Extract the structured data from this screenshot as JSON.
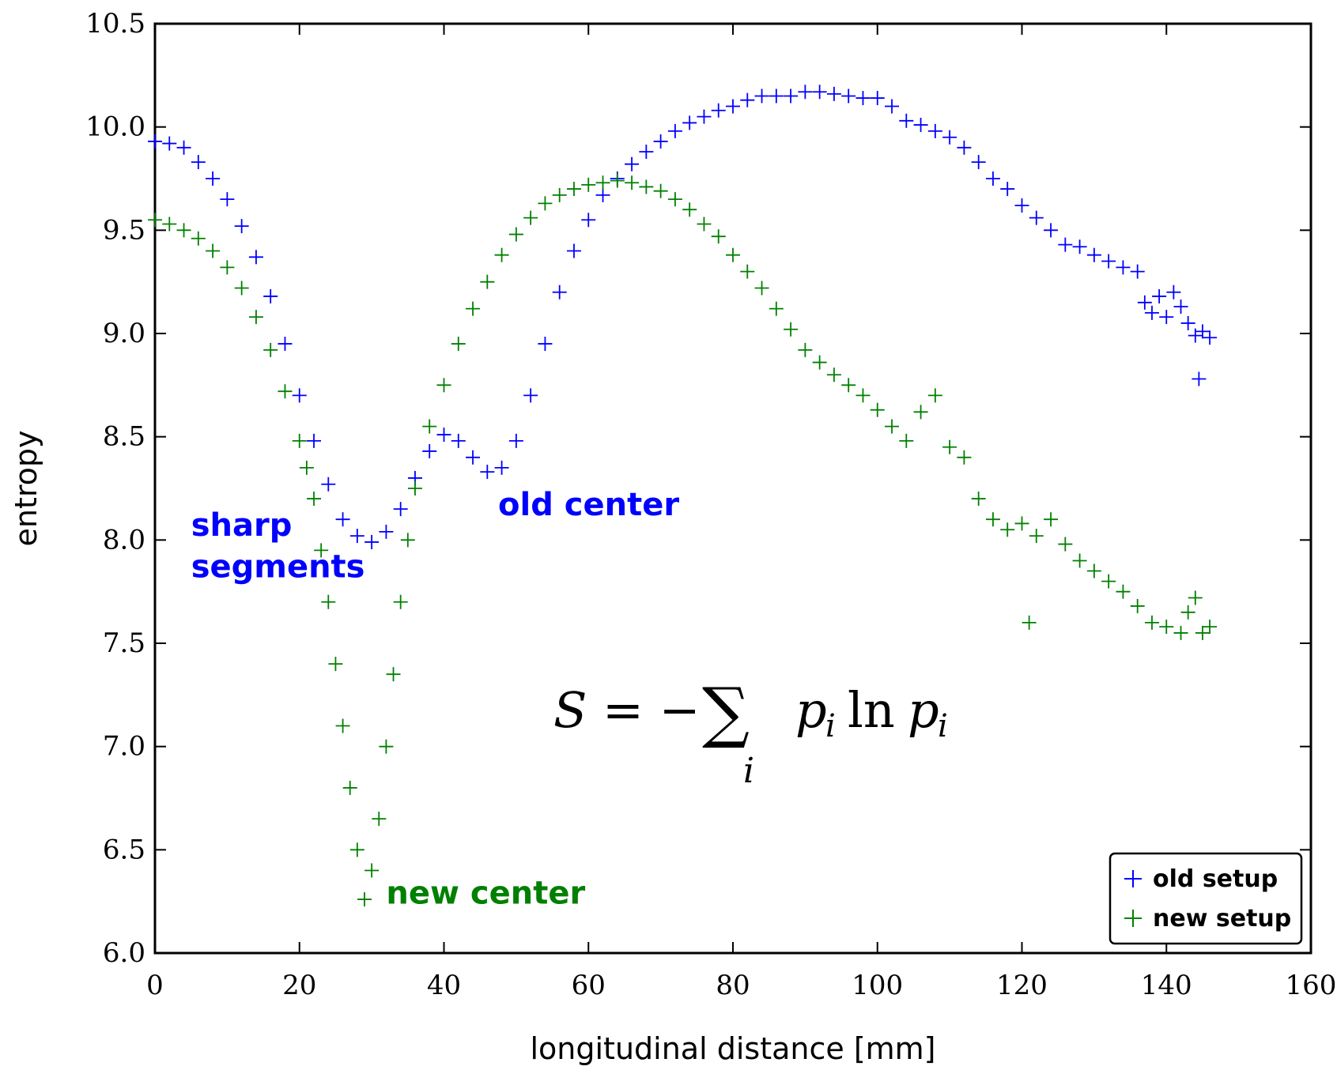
{
  "chart_data": {
    "type": "scatter",
    "xlabel": "longitudinal distance [mm]",
    "ylabel": "entropy",
    "xlim": [
      0,
      160
    ],
    "ylim": [
      6.0,
      10.5
    ],
    "x_ticks": [
      "0",
      "20",
      "40",
      "60",
      "80",
      "100",
      "120",
      "140",
      "160"
    ],
    "y_ticks": [
      "6.0",
      "6.5",
      "7.0",
      "7.5",
      "8.0",
      "8.5",
      "9.0",
      "9.5",
      "10.0",
      "10.5"
    ],
    "grid": false,
    "marker": "+",
    "legend_position": "lower right",
    "legend": [
      "old setup",
      "new setup"
    ],
    "colors": {
      "old setup": "#0000ff",
      "new setup": "#008000"
    },
    "series": [
      {
        "name": "old setup",
        "color": "#0000ff",
        "points": [
          [
            0,
            9.93
          ],
          [
            2,
            9.92
          ],
          [
            4,
            9.9
          ],
          [
            6,
            9.83
          ],
          [
            8,
            9.75
          ],
          [
            10,
            9.65
          ],
          [
            12,
            9.52
          ],
          [
            14,
            9.37
          ],
          [
            16,
            9.18
          ],
          [
            18,
            8.95
          ],
          [
            20,
            8.7
          ],
          [
            22,
            8.48
          ],
          [
            24,
            8.27
          ],
          [
            26,
            8.1
          ],
          [
            28,
            8.02
          ],
          [
            30,
            7.99
          ],
          [
            32,
            8.04
          ],
          [
            34,
            8.15
          ],
          [
            36,
            8.3
          ],
          [
            38,
            8.43
          ],
          [
            40,
            8.51
          ],
          [
            42,
            8.48
          ],
          [
            44,
            8.4
          ],
          [
            46,
            8.33
          ],
          [
            48,
            8.35
          ],
          [
            50,
            8.48
          ],
          [
            52,
            8.7
          ],
          [
            54,
            8.95
          ],
          [
            56,
            9.2
          ],
          [
            58,
            9.4
          ],
          [
            60,
            9.55
          ],
          [
            62,
            9.67
          ],
          [
            64,
            9.75
          ],
          [
            66,
            9.82
          ],
          [
            68,
            9.88
          ],
          [
            70,
            9.93
          ],
          [
            72,
            9.98
          ],
          [
            74,
            10.02
          ],
          [
            76,
            10.05
          ],
          [
            78,
            10.08
          ],
          [
            80,
            10.1
          ],
          [
            82,
            10.13
          ],
          [
            84,
            10.15
          ],
          [
            86,
            10.15
          ],
          [
            88,
            10.15
          ],
          [
            90,
            10.17
          ],
          [
            92,
            10.17
          ],
          [
            94,
            10.16
          ],
          [
            96,
            10.15
          ],
          [
            98,
            10.14
          ],
          [
            100,
            10.14
          ],
          [
            102,
            10.1
          ],
          [
            104,
            10.03
          ],
          [
            106,
            10.01
          ],
          [
            108,
            9.98
          ],
          [
            110,
            9.95
          ],
          [
            112,
            9.9
          ],
          [
            114,
            9.83
          ],
          [
            116,
            9.75
          ],
          [
            118,
            9.7
          ],
          [
            120,
            9.62
          ],
          [
            122,
            9.56
          ],
          [
            124,
            9.5
          ],
          [
            126,
            9.43
          ],
          [
            128,
            9.42
          ],
          [
            130,
            9.38
          ],
          [
            132,
            9.35
          ],
          [
            134,
            9.32
          ],
          [
            136,
            9.3
          ],
          [
            137,
            9.15
          ],
          [
            138,
            9.1
          ],
          [
            139,
            9.18
          ],
          [
            140,
            9.08
          ],
          [
            141,
            9.2
          ],
          [
            142,
            9.13
          ],
          [
            143,
            9.05
          ],
          [
            144,
            8.99
          ],
          [
            144.5,
            8.78
          ],
          [
            145,
            9.01
          ],
          [
            146,
            8.98
          ]
        ]
      },
      {
        "name": "new setup",
        "color": "#008000",
        "points": [
          [
            0,
            9.55
          ],
          [
            2,
            9.53
          ],
          [
            4,
            9.5
          ],
          [
            6,
            9.46
          ],
          [
            8,
            9.4
          ],
          [
            10,
            9.32
          ],
          [
            12,
            9.22
          ],
          [
            14,
            9.08
          ],
          [
            16,
            8.92
          ],
          [
            18,
            8.72
          ],
          [
            20,
            8.48
          ],
          [
            21,
            8.35
          ],
          [
            22,
            8.2
          ],
          [
            23,
            7.95
          ],
          [
            24,
            7.7
          ],
          [
            25,
            7.4
          ],
          [
            26,
            7.1
          ],
          [
            27,
            6.8
          ],
          [
            28,
            6.5
          ],
          [
            29,
            6.26
          ],
          [
            30,
            6.4
          ],
          [
            31,
            6.65
          ],
          [
            32,
            7.0
          ],
          [
            33,
            7.35
          ],
          [
            34,
            7.7
          ],
          [
            35,
            8.0
          ],
          [
            36,
            8.25
          ],
          [
            38,
            8.55
          ],
          [
            40,
            8.75
          ],
          [
            42,
            8.95
          ],
          [
            44,
            9.12
          ],
          [
            46,
            9.25
          ],
          [
            48,
            9.38
          ],
          [
            50,
            9.48
          ],
          [
            52,
            9.56
          ],
          [
            54,
            9.63
          ],
          [
            56,
            9.67
          ],
          [
            58,
            9.7
          ],
          [
            60,
            9.72
          ],
          [
            62,
            9.73
          ],
          [
            64,
            9.74
          ],
          [
            66,
            9.73
          ],
          [
            68,
            9.71
          ],
          [
            70,
            9.69
          ],
          [
            72,
            9.65
          ],
          [
            74,
            9.6
          ],
          [
            76,
            9.53
          ],
          [
            78,
            9.47
          ],
          [
            80,
            9.38
          ],
          [
            82,
            9.3
          ],
          [
            84,
            9.22
          ],
          [
            86,
            9.12
          ],
          [
            88,
            9.02
          ],
          [
            90,
            8.92
          ],
          [
            92,
            8.86
          ],
          [
            94,
            8.8
          ],
          [
            96,
            8.75
          ],
          [
            98,
            8.7
          ],
          [
            100,
            8.63
          ],
          [
            102,
            8.55
          ],
          [
            104,
            8.48
          ],
          [
            106,
            8.62
          ],
          [
            108,
            8.7
          ],
          [
            110,
            8.45
          ],
          [
            112,
            8.4
          ],
          [
            114,
            8.2
          ],
          [
            116,
            8.1
          ],
          [
            118,
            8.05
          ],
          [
            120,
            8.08
          ],
          [
            121,
            7.6
          ],
          [
            122,
            8.02
          ],
          [
            124,
            8.1
          ],
          [
            126,
            7.98
          ],
          [
            128,
            7.9
          ],
          [
            130,
            7.85
          ],
          [
            132,
            7.8
          ],
          [
            134,
            7.75
          ],
          [
            136,
            7.68
          ],
          [
            138,
            7.6
          ],
          [
            140,
            7.58
          ],
          [
            142,
            7.55
          ],
          [
            143,
            7.65
          ],
          [
            144,
            7.72
          ],
          [
            145,
            7.55
          ],
          [
            146,
            7.58
          ]
        ]
      }
    ],
    "annotations": [
      {
        "text": "sharp",
        "x": 5,
        "y": 8.02,
        "color": "#0000ff"
      },
      {
        "text": "segments",
        "x": 5,
        "y": 7.82,
        "color": "#0000ff"
      },
      {
        "text": "old center",
        "x": 47.5,
        "y": 8.12,
        "color": "#0000ff"
      },
      {
        "text": "new center",
        "x": 32,
        "y": 6.24,
        "color": "#008000"
      }
    ],
    "formula": {
      "lhs": "S",
      "rhs_sign": "= −",
      "sum": "∑",
      "sub": "i",
      "term1": "p",
      "term1_sub": "i",
      "func": "ln",
      "term2": "p",
      "term2_sub": "i"
    }
  }
}
